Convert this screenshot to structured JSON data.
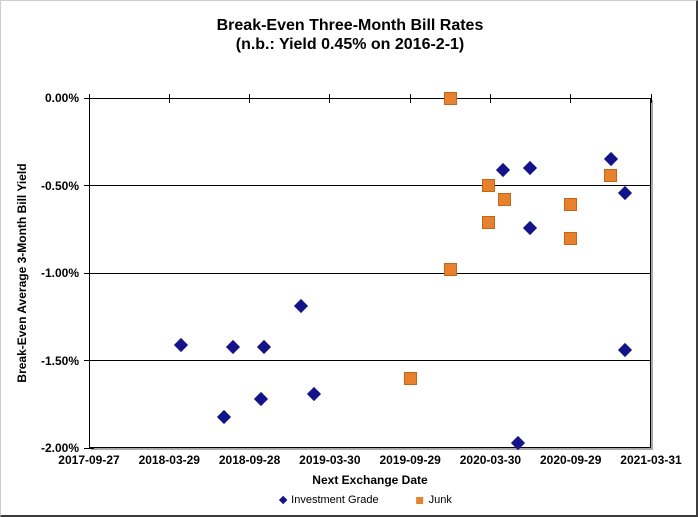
{
  "chart_data": {
    "type": "scatter",
    "title": "Break-Even Three-Month Bill Rates",
    "subtitle": "(n.b.: Yield 0.45% on 2016-2-1)",
    "xlabel": "Next Exchange Date",
    "ylabel": "Break-Even Average 3-Month Bill Yield",
    "x_range": [
      "2017-09-27",
      "2021-03-31"
    ],
    "ylim": [
      -2.0,
      0.0
    ],
    "x_ticks": [
      "2017-09-27",
      "2018-03-29",
      "2018-09-28",
      "2019-03-30",
      "2019-09-29",
      "2020-03-30",
      "2020-09-29",
      "2021-03-31"
    ],
    "y_ticks": [
      {
        "label": "0.00%",
        "value": 0.0
      },
      {
        "label": "-0.50%",
        "value": -0.5
      },
      {
        "label": "-1.00%",
        "value": -1.0
      },
      {
        "label": "-1.50%",
        "value": -1.5
      },
      {
        "label": "-2.00%",
        "value": -2.0
      }
    ],
    "grid": "horizontal-only",
    "legend_position": "bottom-center",
    "series": [
      {
        "name": "Investment Grade",
        "marker": "diamond",
        "color": "#14148A",
        "border_color": "#14148A",
        "points": [
          [
            "2018-04-24",
            -1.41
          ],
          [
            "2018-07-31",
            -1.82
          ],
          [
            "2018-08-22",
            -1.42
          ],
          [
            "2018-10-24",
            -1.72
          ],
          [
            "2018-10-31",
            -1.42
          ],
          [
            "2019-01-24",
            -1.19
          ],
          [
            "2019-02-22",
            -1.69
          ],
          [
            "2020-04-28",
            -0.41
          ],
          [
            "2020-05-31",
            -1.97
          ],
          [
            "2020-06-28",
            -0.4
          ],
          [
            "2020-06-28",
            -0.74
          ],
          [
            "2020-12-29",
            -0.35
          ],
          [
            "2021-01-30",
            -0.54
          ],
          [
            "2021-01-30",
            -1.44
          ]
        ]
      },
      {
        "name": "Junk",
        "marker": "square",
        "color": "#E8812D",
        "border_color": "#C2661A",
        "points": [
          [
            "2019-09-29",
            -1.6
          ],
          [
            "2019-12-29",
            0.0
          ],
          [
            "2019-12-29",
            -0.98
          ],
          [
            "2020-03-26",
            -0.5
          ],
          [
            "2020-03-26",
            -0.71
          ],
          [
            "2020-04-30",
            -0.58
          ],
          [
            "2020-09-29",
            -0.61
          ],
          [
            "2020-09-29",
            -0.8
          ],
          [
            "2020-12-29",
            -0.44
          ]
        ]
      }
    ]
  }
}
